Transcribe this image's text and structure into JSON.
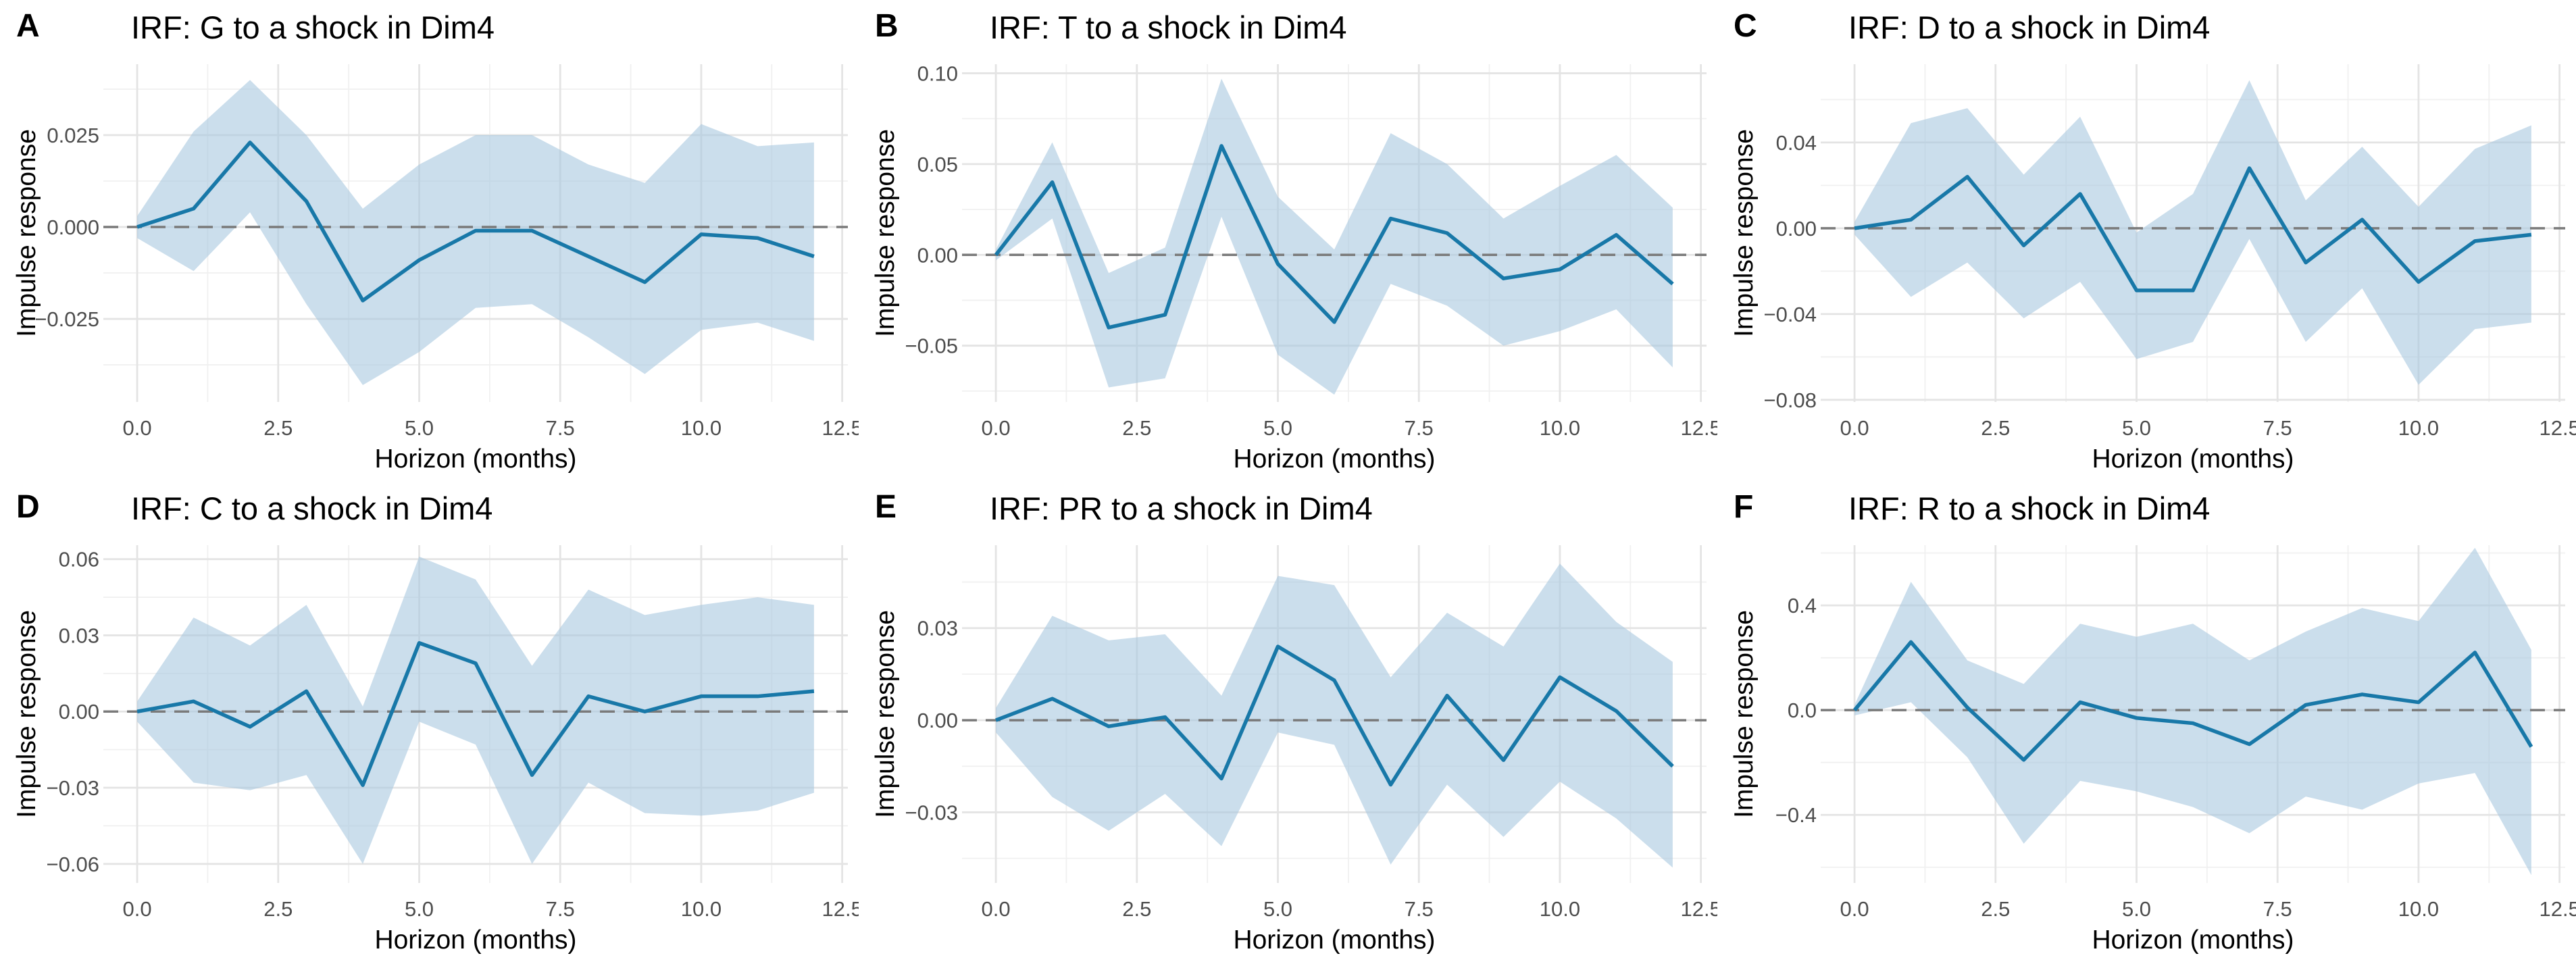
{
  "figure": {
    "x_axis_label": "Horizon (months)",
    "y_axis_label": "Impulse response",
    "xlim": [
      -0.6,
      12.6
    ],
    "x_ticks": [
      {
        "v": 0,
        "label": "0.0"
      },
      {
        "v": 2.5,
        "label": "2.5"
      },
      {
        "v": 5,
        "label": "5.0"
      },
      {
        "v": 7.5,
        "label": "7.5"
      },
      {
        "v": 10,
        "label": "10.0"
      },
      {
        "v": 12.5,
        "label": "12.5"
      }
    ],
    "x_minor": [
      1.25,
      3.75,
      6.25,
      8.75,
      11.25
    ],
    "colors": {
      "line": "#1878a8",
      "ribbon": "#a9c8e0",
      "grid_major": "#e4e4e4",
      "grid_minor": "#f0f0f0",
      "zero_line": "#7a7a7a",
      "tick_text": "#4d4d4d",
      "text": "#000000",
      "background": "#ffffff"
    }
  },
  "chart_data": [
    {
      "type": "line",
      "panel_label": "A",
      "title": "IRF: G to a shock in Dim4",
      "x": [
        0,
        1,
        2,
        3,
        4,
        5,
        6,
        7,
        8,
        9,
        10,
        11,
        12
      ],
      "line": [
        0.0,
        0.005,
        0.023,
        0.007,
        -0.02,
        -0.009,
        -0.001,
        -0.001,
        -0.008,
        -0.015,
        -0.002,
        -0.003,
        -0.008
      ],
      "upper": [
        0.003,
        0.026,
        0.04,
        0.025,
        0.005,
        0.017,
        0.025,
        0.025,
        0.017,
        0.012,
        0.028,
        0.022,
        0.023
      ],
      "lower": [
        -0.003,
        -0.012,
        0.004,
        -0.021,
        -0.043,
        -0.034,
        -0.022,
        -0.021,
        -0.03,
        -0.04,
        -0.028,
        -0.026,
        -0.031
      ],
      "ylim": [
        -0.0476,
        0.0443
      ],
      "y_ticks": [
        {
          "v": 0.025,
          "label": "0.025"
        },
        {
          "v": 0.0,
          "label": "0.000"
        },
        {
          "v": -0.025,
          "label": "−0.025"
        }
      ],
      "y_minor": [
        0.0375,
        0.0125,
        -0.0125,
        -0.0375
      ]
    },
    {
      "type": "line",
      "panel_label": "B",
      "title": "IRF: T to a shock in Dim4",
      "x": [
        0,
        1,
        2,
        3,
        4,
        5,
        6,
        7,
        8,
        9,
        10,
        11,
        12
      ],
      "line": [
        0.0,
        0.04,
        -0.04,
        -0.033,
        0.06,
        -0.005,
        -0.037,
        0.02,
        0.012,
        -0.013,
        -0.008,
        0.011,
        -0.016
      ],
      "upper": [
        0.003,
        0.062,
        -0.01,
        0.004,
        0.097,
        0.032,
        0.003,
        0.067,
        0.05,
        0.02,
        0.038,
        0.055,
        0.026
      ],
      "lower": [
        -0.003,
        0.02,
        -0.073,
        -0.068,
        0.021,
        -0.055,
        -0.077,
        -0.016,
        -0.028,
        -0.05,
        -0.042,
        -0.03,
        -0.062
      ],
      "ylim": [
        -0.081,
        0.105
      ],
      "y_ticks": [
        {
          "v": 0.1,
          "label": "0.10"
        },
        {
          "v": 0.05,
          "label": "0.05"
        },
        {
          "v": 0.0,
          "label": "0.00"
        },
        {
          "v": -0.05,
          "label": "−0.05"
        }
      ],
      "y_minor": [
        0.075,
        0.025,
        -0.025,
        -0.075
      ]
    },
    {
      "type": "line",
      "panel_label": "C",
      "title": "IRF: D to a shock in Dim4",
      "x": [
        0,
        1,
        2,
        3,
        4,
        5,
        6,
        7,
        8,
        9,
        10,
        11,
        12
      ],
      "line": [
        0.0,
        0.004,
        0.024,
        -0.008,
        0.016,
        -0.029,
        -0.029,
        0.028,
        -0.016,
        0.004,
        -0.025,
        -0.006,
        -0.003
      ],
      "upper": [
        0.003,
        0.049,
        0.056,
        0.025,
        0.052,
        -0.002,
        0.016,
        0.069,
        0.013,
        0.038,
        0.01,
        0.037,
        0.048
      ],
      "lower": [
        -0.003,
        -0.032,
        -0.016,
        -0.042,
        -0.025,
        -0.061,
        -0.053,
        -0.005,
        -0.053,
        -0.028,
        -0.073,
        -0.047,
        -0.044
      ],
      "ylim": [
        -0.081,
        0.0765
      ],
      "y_ticks": [
        {
          "v": 0.04,
          "label": "0.04"
        },
        {
          "v": 0.0,
          "label": "0.00"
        },
        {
          "v": -0.04,
          "label": "−0.04"
        },
        {
          "v": -0.08,
          "label": "−0.08"
        }
      ],
      "y_minor": [
        0.06,
        0.02,
        -0.02,
        -0.06
      ]
    },
    {
      "type": "line",
      "panel_label": "D",
      "title": "IRF: C to a shock in Dim4",
      "x": [
        0,
        1,
        2,
        3,
        4,
        5,
        6,
        7,
        8,
        9,
        10,
        11,
        12
      ],
      "line": [
        0.0,
        0.004,
        -0.006,
        0.008,
        -0.029,
        0.027,
        0.019,
        -0.025,
        0.006,
        0.0,
        0.006,
        0.006,
        0.008
      ],
      "upper": [
        0.004,
        0.037,
        0.026,
        0.042,
        0.002,
        0.061,
        0.052,
        0.018,
        0.048,
        0.038,
        0.042,
        0.045,
        0.042
      ],
      "lower": [
        -0.004,
        -0.028,
        -0.031,
        -0.025,
        -0.06,
        -0.004,
        -0.013,
        -0.06,
        -0.028,
        -0.04,
        -0.041,
        -0.039,
        -0.032
      ],
      "ylim": [
        -0.0675,
        0.0655
      ],
      "y_ticks": [
        {
          "v": 0.06,
          "label": "0.06"
        },
        {
          "v": 0.03,
          "label": "0.03"
        },
        {
          "v": 0.0,
          "label": "0.00"
        },
        {
          "v": -0.03,
          "label": "−0.03"
        },
        {
          "v": -0.06,
          "label": "−0.06"
        }
      ],
      "y_minor": [
        0.045,
        0.015,
        -0.015,
        -0.045
      ]
    },
    {
      "type": "line",
      "panel_label": "E",
      "title": "IRF: PR to a shock in Dim4",
      "x": [
        0,
        1,
        2,
        3,
        4,
        5,
        6,
        7,
        8,
        9,
        10,
        11,
        12
      ],
      "line": [
        0.0,
        0.007,
        -0.002,
        0.001,
        -0.019,
        0.024,
        0.013,
        -0.021,
        0.008,
        -0.013,
        0.014,
        0.003,
        -0.015
      ],
      "upper": [
        0.004,
        0.034,
        0.026,
        0.028,
        0.008,
        0.047,
        0.044,
        0.014,
        0.035,
        0.024,
        0.051,
        0.032,
        0.019
      ],
      "lower": [
        -0.004,
        -0.025,
        -0.036,
        -0.024,
        -0.041,
        -0.004,
        -0.008,
        -0.047,
        -0.021,
        -0.038,
        -0.02,
        -0.032,
        -0.048
      ],
      "ylim": [
        -0.053,
        0.057
      ],
      "y_ticks": [
        {
          "v": 0.03,
          "label": "0.03"
        },
        {
          "v": 0.0,
          "label": "0.00"
        },
        {
          "v": -0.03,
          "label": "−0.03"
        }
      ],
      "y_minor": [
        0.045,
        0.015,
        -0.015,
        -0.045
      ]
    },
    {
      "type": "line",
      "panel_label": "F",
      "title": "IRF: R to a shock in Dim4",
      "x": [
        0,
        1,
        2,
        3,
        4,
        5,
        6,
        7,
        8,
        9,
        10,
        11,
        12
      ],
      "line": [
        0.0,
        0.26,
        0.01,
        -0.19,
        0.03,
        -0.03,
        -0.05,
        -0.13,
        0.02,
        0.06,
        0.03,
        0.22,
        -0.14
      ],
      "upper": [
        0.02,
        0.49,
        0.19,
        0.1,
        0.33,
        0.28,
        0.33,
        0.19,
        0.3,
        0.39,
        0.34,
        0.62,
        0.23
      ],
      "lower": [
        -0.02,
        0.03,
        -0.18,
        -0.51,
        -0.27,
        -0.31,
        -0.37,
        -0.47,
        -0.33,
        -0.38,
        -0.28,
        -0.24,
        -0.63
      ],
      "ylim": [
        -0.66,
        0.63
      ],
      "y_ticks": [
        {
          "v": 0.4,
          "label": "0.4"
        },
        {
          "v": 0.0,
          "label": "0.0"
        },
        {
          "v": -0.4,
          "label": "−0.4"
        }
      ],
      "y_minor": [
        0.6,
        0.2,
        -0.2,
        -0.6
      ]
    }
  ]
}
